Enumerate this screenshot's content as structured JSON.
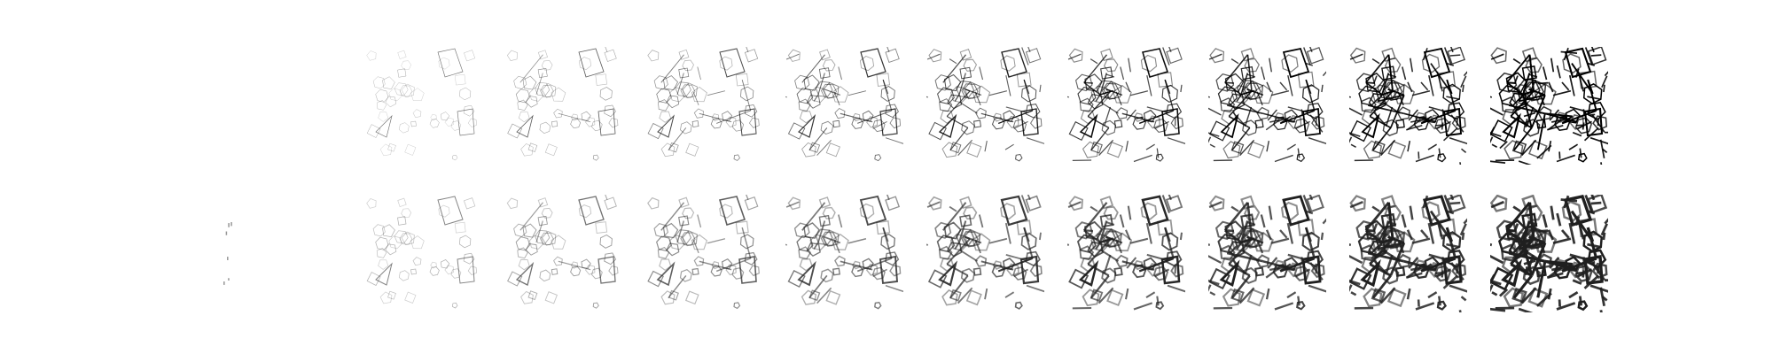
{
  "figure": {
    "rows": 2,
    "columns": 10,
    "row_labels": [
      "",
      ""
    ],
    "column_labels": [],
    "first_column_visibility": [
      "blank",
      "sparse-marks"
    ],
    "palette": {
      "background": "#ffffff",
      "ink": "#000000",
      "soft_ink": "#6b6b6b"
    }
  }
}
